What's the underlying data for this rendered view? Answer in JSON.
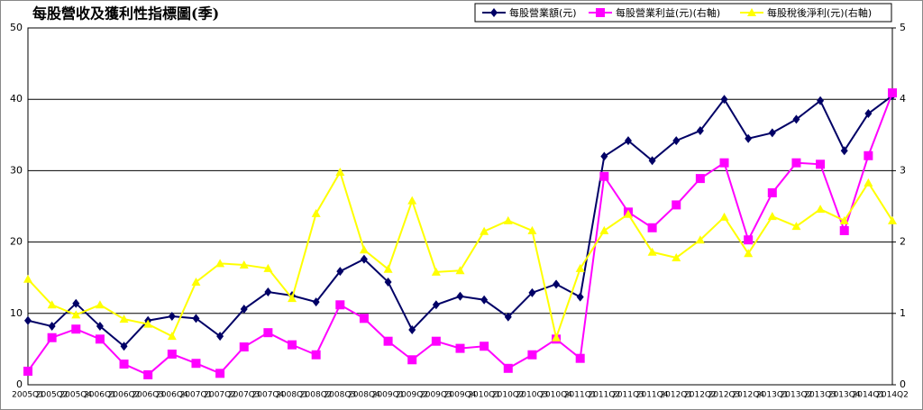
{
  "chart_data": {
    "type": "line",
    "title": "每股營收及獲利性指標圖(季)",
    "categories": [
      "2005Q1",
      "2005Q2",
      "2005Q4",
      "2006Q1",
      "2006Q2",
      "2006Q3",
      "2006Q4",
      "2007Q1",
      "2007Q2",
      "2007Q3",
      "2007Q4",
      "2008Q1",
      "2008Q2",
      "2008Q3",
      "2008Q4",
      "2009Q1",
      "2009Q2",
      "2009Q3",
      "2009Q4",
      "2010Q1",
      "2010Q2",
      "2010Q3",
      "2010Q4",
      "2011Q1",
      "2011Q2",
      "2011Q3",
      "2011Q4",
      "2012Q1",
      "2012Q2",
      "2012Q3",
      "2012Q4",
      "2013Q1",
      "2013Q2",
      "2013Q3",
      "2013Q4",
      "2014Q1",
      "2014Q2"
    ],
    "series": [
      {
        "name": "每股營業額(元)",
        "color": "#000066",
        "marker": "diamond",
        "axis": "y",
        "values": [
          9.0,
          8.2,
          11.4,
          8.2,
          5.4,
          9.0,
          9.6,
          9.3,
          6.8,
          10.6,
          13.0,
          12.5,
          11.6,
          15.9,
          17.6,
          14.4,
          7.7,
          11.2,
          12.4,
          11.9,
          9.5,
          12.9,
          14.1,
          12.3,
          32.0,
          34.2,
          31.4,
          34.2,
          35.6,
          40.0,
          34.5,
          35.3,
          37.2,
          39.8,
          32.8,
          38.0,
          40.5
        ]
      },
      {
        "name": "每股營業利益(元)(右軸)",
        "color": "#ff00ff",
        "marker": "square",
        "axis": "y2",
        "values": [
          0.19,
          0.66,
          0.78,
          0.64,
          0.29,
          0.14,
          0.43,
          0.3,
          0.16,
          0.53,
          0.73,
          0.56,
          0.42,
          1.12,
          0.93,
          0.61,
          0.35,
          0.61,
          0.51,
          0.54,
          0.23,
          0.42,
          0.64,
          0.37,
          2.92,
          2.42,
          2.2,
          2.52,
          2.89,
          3.11,
          2.03,
          2.69,
          3.11,
          3.09,
          2.16,
          3.21,
          4.09
        ]
      },
      {
        "name": "每股稅後淨利(元)(右軸)",
        "color": "#ffff00",
        "marker": "triangle",
        "axis": "y2",
        "values": [
          1.48,
          1.12,
          0.98,
          1.12,
          0.92,
          0.85,
          0.68,
          1.44,
          1.7,
          1.68,
          1.63,
          1.21,
          2.4,
          2.98,
          1.89,
          1.62,
          2.58,
          1.58,
          1.6,
          2.15,
          2.3,
          2.16,
          0.66,
          1.63,
          2.16,
          2.39,
          1.86,
          1.78,
          2.03,
          2.35,
          1.84,
          2.36,
          2.22,
          2.46,
          2.3,
          2.83,
          2.3
        ]
      }
    ],
    "ylim": [
      0,
      50
    ],
    "yticks": [
      0,
      10,
      20,
      30,
      40,
      50
    ],
    "y2lim": [
      0,
      5
    ],
    "y2ticks": [
      0,
      1,
      2,
      3,
      4,
      5
    ],
    "grid": true,
    "legend": "top-right"
  }
}
